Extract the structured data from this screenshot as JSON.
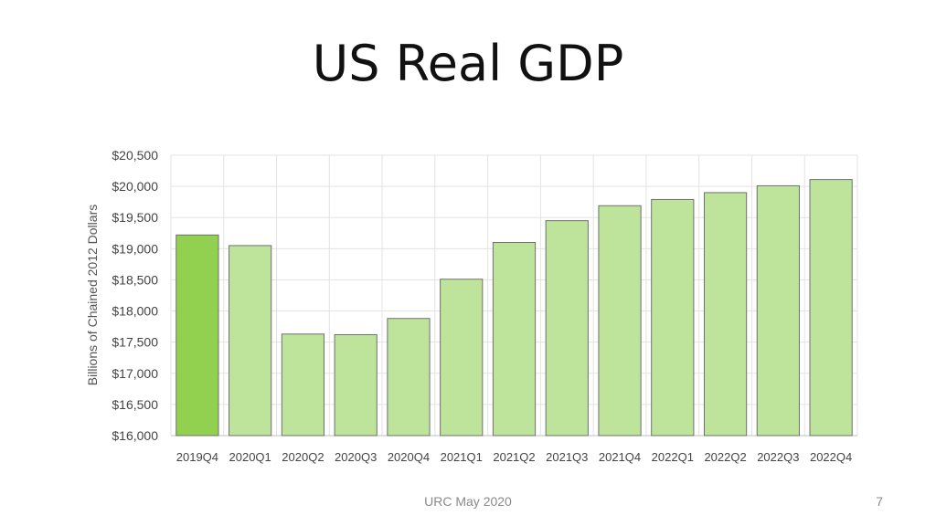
{
  "slide": {
    "title": "US Real GDP",
    "footer": "URC May 2020",
    "page_number": "7"
  },
  "chart_data": {
    "type": "bar",
    "title": "",
    "xlabel": "",
    "ylabel": "Billions of Chained 2012 Dollars",
    "categories": [
      "2019Q4",
      "2020Q1",
      "2020Q2",
      "2020Q3",
      "2020Q4",
      "2021Q1",
      "2021Q2",
      "2021Q3",
      "2021Q4",
      "2022Q1",
      "2022Q2",
      "2022Q3",
      "2022Q4"
    ],
    "values": [
      19220,
      19050,
      17630,
      17620,
      17880,
      18510,
      19100,
      19450,
      19690,
      19790,
      19900,
      20010,
      20110
    ],
    "ylim": [
      16000,
      20500
    ],
    "yticks": [
      16000,
      16500,
      17000,
      17500,
      18000,
      18500,
      19000,
      19500,
      20000,
      20500
    ],
    "ytick_labels": [
      "$16,000",
      "$16,500",
      "$17,000",
      "$17,500",
      "$18,000",
      "$18,500",
      "$19,000",
      "$19,500",
      "$20,000",
      "$20,500"
    ],
    "grid": true,
    "legend": "none",
    "colors": {
      "highlight_bar": "#92d050",
      "bar": "#bde49a",
      "bar_border": "#6f6f6f",
      "grid": "#e3e3e3"
    }
  }
}
